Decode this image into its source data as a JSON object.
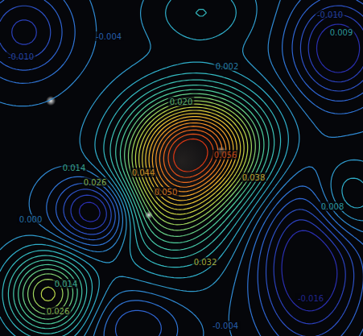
{
  "chart_data": {
    "type": "contour",
    "xlim": [
      0,
      451
    ],
    "ylim": [
      0,
      417
    ],
    "tick_labels": false,
    "levels": [
      -0.016,
      -0.013,
      -0.01,
      -0.007,
      -0.004,
      -0.001,
      0.002,
      0.005,
      0.008,
      0.011,
      0.014,
      0.017,
      0.02,
      0.023,
      0.026,
      0.029,
      0.032,
      0.035,
      0.038,
      0.041,
      0.044,
      0.047,
      0.05,
      0.053,
      0.056,
      0.059
    ],
    "color_range": [
      -0.016,
      0.062
    ],
    "colors": [
      "#2a2fb0",
      "#2f6fd6",
      "#2fb6c8",
      "#4fcf9a",
      "#b8d84a",
      "#f0c030",
      "#f07a20",
      "#d42010"
    ],
    "sources": [
      {
        "x": 250,
        "y": 180,
        "amplitude": 0.045,
        "sigma_x": 55,
        "sigma_y": 45
      },
      {
        "x": 215,
        "y": 235,
        "amplitude": 0.03,
        "sigma_x": 50,
        "sigma_y": 60
      },
      {
        "x": 120,
        "y": 262,
        "amplitude": -0.022,
        "sigma_x": 35,
        "sigma_y": 30
      },
      {
        "x": 420,
        "y": 60,
        "amplitude": -0.02,
        "sigma_x": 40,
        "sigma_y": 45
      },
      {
        "x": 385,
        "y": 330,
        "amplitude": -0.022,
        "sigma_x": 45,
        "sigma_y": 70
      },
      {
        "x": 30,
        "y": 40,
        "amplitude": -0.014,
        "sigma_x": 40,
        "sigma_y": 40
      },
      {
        "x": 60,
        "y": 365,
        "amplitude": 0.03,
        "sigma_x": 35,
        "sigma_y": 35
      },
      {
        "x": 430,
        "y": 250,
        "amplitude": 0.012,
        "sigma_x": 30,
        "sigma_y": 35
      },
      {
        "x": 170,
        "y": 405,
        "amplitude": -0.01,
        "sigma_x": 40,
        "sigma_y": 30
      },
      {
        "x": 250,
        "y": 15,
        "amplitude": 0.008,
        "sigma_x": 45,
        "sigma_y": 30
      }
    ],
    "labels": [
      {
        "text": "-0.010",
        "x": 26,
        "y": 70,
        "level": -0.01
      },
      {
        "text": "-0.004",
        "x": 135,
        "y": 45,
        "level": -0.004
      },
      {
        "text": "0.020",
        "x": 225,
        "y": 126,
        "level": 0.02
      },
      {
        "text": "0.002",
        "x": 282,
        "y": 82,
        "level": 0.002
      },
      {
        "text": "-0.010",
        "x": 410,
        "y": 18,
        "level": -0.01
      },
      {
        "text": "0.009",
        "x": 424,
        "y": 40,
        "level": 0.009
      },
      {
        "text": "0.056",
        "x": 280,
        "y": 192,
        "level": 0.056
      },
      {
        "text": "0.014",
        "x": 92,
        "y": 208,
        "level": 0.014
      },
      {
        "text": "0.026",
        "x": 118,
        "y": 226,
        "level": 0.026
      },
      {
        "text": "0.044",
        "x": 178,
        "y": 214,
        "level": 0.044
      },
      {
        "text": "0.050",
        "x": 206,
        "y": 238,
        "level": 0.05
      },
      {
        "text": "0.038",
        "x": 315,
        "y": 220,
        "level": 0.038
      },
      {
        "text": "0.032",
        "x": 255,
        "y": 325,
        "level": 0.032
      },
      {
        "text": "0.008",
        "x": 413,
        "y": 256,
        "level": 0.008
      },
      {
        "text": "0.000",
        "x": 38,
        "y": 272,
        "level": 0.0
      },
      {
        "text": "0.014",
        "x": 82,
        "y": 352,
        "level": 0.014
      },
      {
        "text": "0.026",
        "x": 72,
        "y": 386,
        "level": 0.026
      },
      {
        "text": "-0.016",
        "x": 386,
        "y": 370,
        "level": -0.016
      },
      {
        "text": "-0.004",
        "x": 280,
        "y": 404,
        "level": -0.004
      }
    ]
  }
}
